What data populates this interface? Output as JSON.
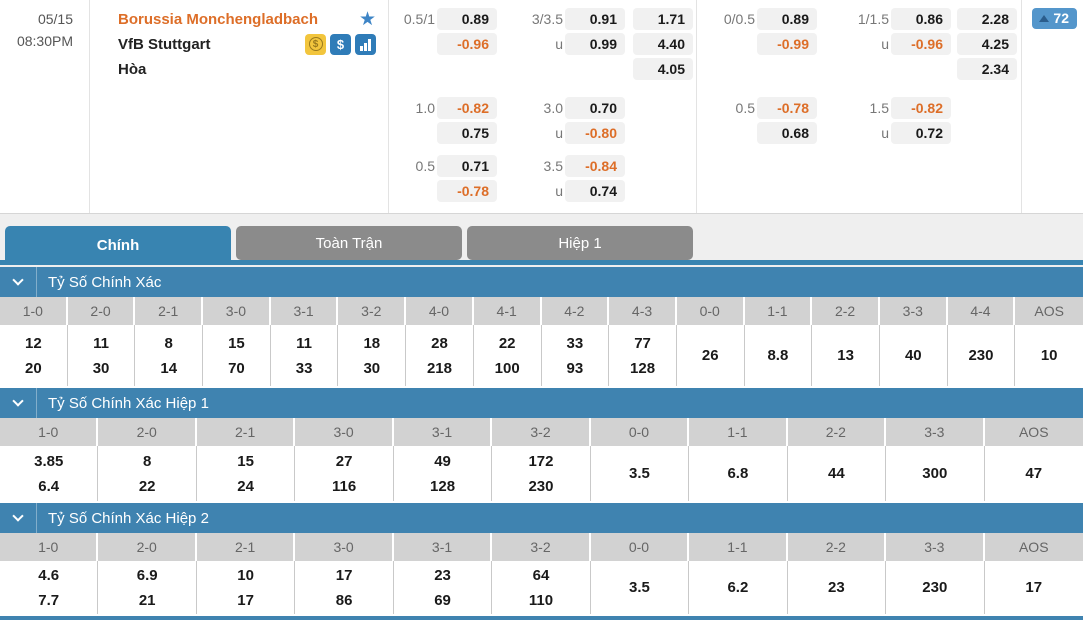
{
  "match": {
    "date": "05/15",
    "time": "08:30PM",
    "home_team": "Borussia Monchengladbach",
    "away_team": "VfB Stuttgart",
    "draw_label": "Hòa",
    "more_markets_count": "72",
    "icons": [
      "favorite-star",
      "coin-promo",
      "dollar-cash",
      "bar-chart-stats"
    ]
  },
  "colors": {
    "accent_blue": "#3884b1",
    "section_header_blue": "#3f83b0",
    "badge_blue": "#5496cb",
    "inactive_tab_gray": "#8b8b8b",
    "negative_odds_orange": "#dd6e28",
    "home_team_orange": "#dd6e28"
  },
  "odds_full": {
    "rows": [
      {
        "hdp": "0.5/1",
        "hdp_v1": "0.89",
        "hdp_v2": "-0.96",
        "ou": "3/3.5",
        "u": "u",
        "ou_v1": "0.91",
        "ou_v2": "0.99",
        "x1": "1.71",
        "x2": "4.40",
        "x3": "4.05"
      },
      {
        "hdp": "1.0",
        "hdp_v1": "-0.82",
        "hdp_v2": "0.75",
        "ou": "3.0",
        "u": "u",
        "ou_v1": "0.70",
        "ou_v2": "-0.80"
      },
      {
        "hdp": "0.5",
        "hdp_v1": "0.71",
        "hdp_v2": "-0.78",
        "ou": "3.5",
        "u": "u",
        "ou_v1": "-0.84",
        "ou_v2": "0.74"
      }
    ]
  },
  "odds_half": {
    "rows": [
      {
        "hdp": "0/0.5",
        "hdp_v1": "0.89",
        "hdp_v2": "-0.99",
        "ou": "1/1.5",
        "u": "u",
        "ou_v1": "0.86",
        "ou_v2": "-0.96",
        "x1": "2.28",
        "x2": "4.25",
        "x3": "2.34"
      },
      {
        "hdp": "0.5",
        "hdp_v1": "-0.78",
        "hdp_v2": "0.68",
        "ou": "1.5",
        "u": "u",
        "ou_v1": "-0.82",
        "ou_v2": "0.72"
      }
    ]
  },
  "tabs": [
    {
      "label": "Chính",
      "active": true
    },
    {
      "label": "Toàn Trận",
      "active": false
    },
    {
      "label": "Hiệp 1",
      "active": false
    }
  ],
  "sections": [
    {
      "title": "Tỷ Số Chính Xác",
      "columns": [
        {
          "score": "1-0",
          "values": [
            "12",
            "20"
          ]
        },
        {
          "score": "2-0",
          "values": [
            "11",
            "30"
          ]
        },
        {
          "score": "2-1",
          "values": [
            "8",
            "14"
          ]
        },
        {
          "score": "3-0",
          "values": [
            "15",
            "70"
          ]
        },
        {
          "score": "3-1",
          "values": [
            "11",
            "33"
          ]
        },
        {
          "score": "3-2",
          "values": [
            "18",
            "30"
          ]
        },
        {
          "score": "4-0",
          "values": [
            "28",
            "218"
          ]
        },
        {
          "score": "4-1",
          "values": [
            "22",
            "100"
          ]
        },
        {
          "score": "4-2",
          "values": [
            "33",
            "93"
          ]
        },
        {
          "score": "4-3",
          "values": [
            "77",
            "128"
          ]
        },
        {
          "score": "0-0",
          "values": [
            "26"
          ]
        },
        {
          "score": "1-1",
          "values": [
            "8.8"
          ]
        },
        {
          "score": "2-2",
          "values": [
            "13"
          ]
        },
        {
          "score": "3-3",
          "values": [
            "40"
          ]
        },
        {
          "score": "4-4",
          "values": [
            "230"
          ]
        },
        {
          "score": "AOS",
          "values": [
            "10"
          ]
        }
      ]
    },
    {
      "title": "Tỷ Số Chính Xác Hiệp 1",
      "columns": [
        {
          "score": "1-0",
          "values": [
            "3.85",
            "6.4"
          ]
        },
        {
          "score": "2-0",
          "values": [
            "8",
            "22"
          ]
        },
        {
          "score": "2-1",
          "values": [
            "15",
            "24"
          ]
        },
        {
          "score": "3-0",
          "values": [
            "27",
            "116"
          ]
        },
        {
          "score": "3-1",
          "values": [
            "49",
            "128"
          ]
        },
        {
          "score": "3-2",
          "values": [
            "172",
            "230"
          ]
        },
        {
          "score": "0-0",
          "values": [
            "3.5"
          ]
        },
        {
          "score": "1-1",
          "values": [
            "6.8"
          ]
        },
        {
          "score": "2-2",
          "values": [
            "44"
          ]
        },
        {
          "score": "3-3",
          "values": [
            "300"
          ]
        },
        {
          "score": "AOS",
          "values": [
            "47"
          ]
        }
      ]
    },
    {
      "title": "Tỷ Số Chính Xác Hiệp 2",
      "columns": [
        {
          "score": "1-0",
          "values": [
            "4.6",
            "7.7"
          ]
        },
        {
          "score": "2-0",
          "values": [
            "6.9",
            "21"
          ]
        },
        {
          "score": "2-1",
          "values": [
            "10",
            "17"
          ]
        },
        {
          "score": "3-0",
          "values": [
            "17",
            "86"
          ]
        },
        {
          "score": "3-1",
          "values": [
            "23",
            "69"
          ]
        },
        {
          "score": "3-2",
          "values": [
            "64",
            "110"
          ]
        },
        {
          "score": "0-0",
          "values": [
            "3.5"
          ]
        },
        {
          "score": "1-1",
          "values": [
            "6.2"
          ]
        },
        {
          "score": "2-2",
          "values": [
            "23"
          ]
        },
        {
          "score": "3-3",
          "values": [
            "230"
          ]
        },
        {
          "score": "AOS",
          "values": [
            "17"
          ]
        }
      ]
    }
  ]
}
